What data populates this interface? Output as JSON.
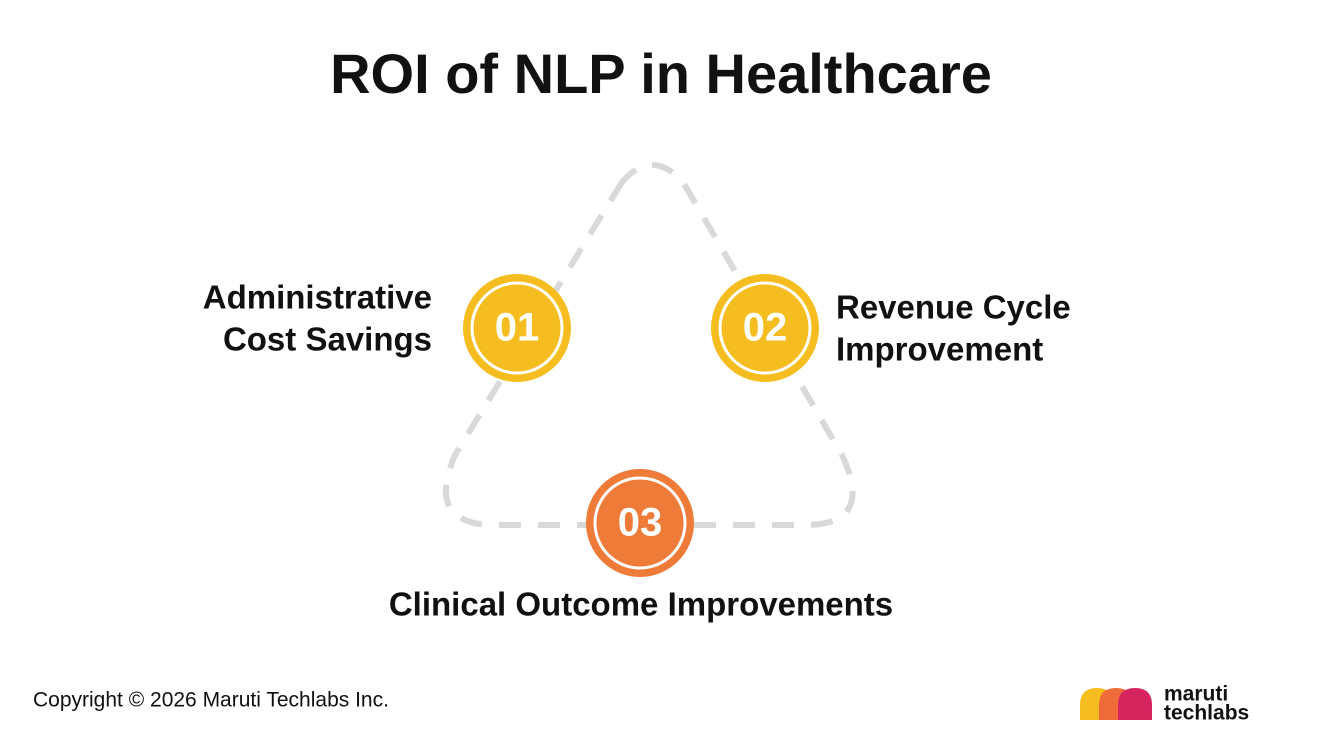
{
  "header": {
    "title": "ROI of NLP in Healthcare"
  },
  "nodes": [
    {
      "number": "01",
      "label": [
        "Administrative",
        "Cost Savings"
      ]
    },
    {
      "number": "02",
      "label": [
        "Revenue Cycle",
        "Improvement"
      ]
    },
    {
      "number": "03",
      "label": [
        "Clinical Outcome Improvements"
      ]
    }
  ],
  "footer": {
    "copyright": "Copyright © 2026 Maruti Techlabs Inc.",
    "logo": [
      "maruti",
      "techlabs"
    ]
  }
}
